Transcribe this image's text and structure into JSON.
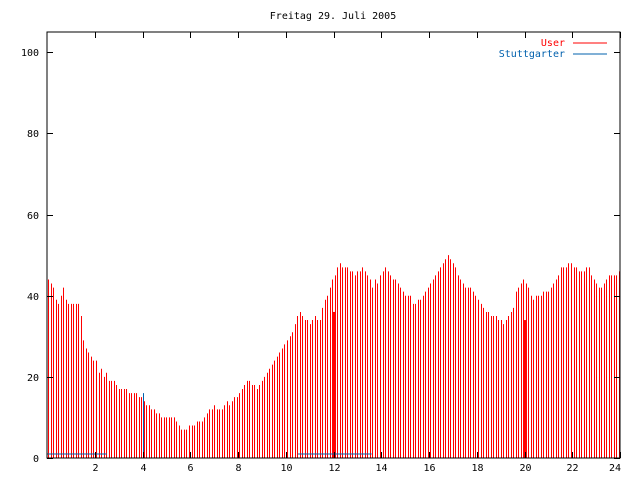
{
  "chart_data": {
    "type": "bar",
    "title": "Freitag 29. Juli 2005",
    "xlabel": "",
    "ylabel": "",
    "xlim": [
      0,
      24
    ],
    "ylim": [
      0,
      105
    ],
    "x_ticks": [
      "2",
      "4",
      "6",
      "8",
      "10",
      "12",
      "14",
      "16",
      "18",
      "20",
      "22",
      "24"
    ],
    "y_ticks": [
      "0",
      "20",
      "40",
      "60",
      "80",
      "100"
    ],
    "grid": false,
    "legend_position": "top-right",
    "series": [
      {
        "name": "User",
        "color": "#ff0000",
        "values": [
          44,
          43,
          42,
          39,
          38,
          40,
          42,
          39,
          38,
          38,
          38,
          38,
          38,
          35,
          29,
          27,
          26,
          25,
          24,
          24,
          21,
          22,
          20,
          21,
          19,
          19,
          19,
          18,
          17,
          17,
          17,
          17,
          16,
          16,
          16,
          16,
          15,
          15,
          14,
          13,
          13,
          12,
          12,
          11,
          11,
          10,
          10,
          10,
          10,
          10,
          10,
          9,
          8,
          7,
          7,
          7,
          8,
          8,
          8,
          9,
          9,
          9,
          10,
          11,
          12,
          12,
          13,
          12,
          12,
          12,
          13,
          14,
          13,
          14,
          15,
          15,
          16,
          17,
          18,
          19,
          19,
          18,
          18,
          17,
          18,
          19,
          20,
          21,
          22,
          23,
          24,
          25,
          26,
          27,
          28,
          29,
          30,
          31,
          33,
          35,
          36,
          35,
          34,
          34,
          33,
          34,
          35,
          34,
          34,
          37,
          39,
          40,
          42,
          44,
          45,
          47,
          48,
          47,
          47,
          47,
          46,
          46,
          45,
          46,
          46,
          47,
          46,
          45,
          44,
          42,
          44,
          43,
          45,
          46,
          47,
          46,
          45,
          44,
          44,
          43,
          42,
          41,
          40,
          40,
          40,
          38,
          38,
          39,
          39,
          40,
          41,
          42,
          43,
          44,
          45,
          46,
          47,
          48,
          49,
          50,
          49,
          48,
          47,
          45,
          44,
          43,
          42,
          42,
          42,
          41,
          40,
          39,
          38,
          37,
          36,
          36,
          35,
          35,
          35,
          34,
          34,
          33,
          34,
          35,
          36,
          37,
          41,
          42,
          43,
          44,
          43,
          42,
          40,
          39,
          40,
          40,
          40,
          41,
          41,
          41,
          42,
          43,
          44,
          45,
          47,
          47,
          47,
          48,
          48,
          47,
          47,
          46,
          46,
          46,
          47,
          47,
          45,
          44,
          43,
          42,
          42,
          43,
          44,
          45,
          45,
          45,
          45,
          46
        ],
        "spikes": [
          [
            12.0,
            36
          ],
          [
            20.0,
            34
          ]
        ]
      },
      {
        "name": "Stuttgarter",
        "color": "#0060ad",
        "segments": [
          [
            0,
            2.5,
            1
          ],
          [
            10.5,
            13.6,
            1
          ]
        ],
        "spikes": [
          [
            4.0,
            16
          ]
        ]
      }
    ]
  }
}
